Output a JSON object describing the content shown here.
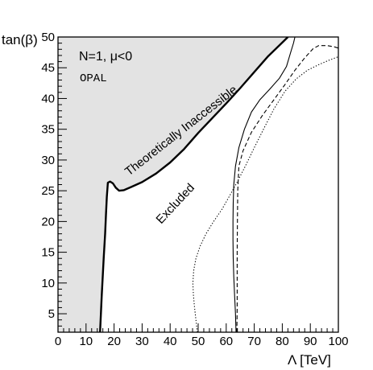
{
  "chart_data": {
    "type": "line",
    "xlabel": "Λ [TeV]",
    "ylabel": "tan(β)",
    "xlim": [
      0,
      100
    ],
    "ylim": [
      2,
      50
    ],
    "x_ticks": [
      0,
      10,
      20,
      30,
      40,
      50,
      60,
      70,
      80,
      90,
      100
    ],
    "y_ticks": [
      5,
      10,
      15,
      20,
      25,
      30,
      35,
      40,
      45,
      50
    ],
    "grid": false,
    "annotations": {
      "model": "N=1, μ<0",
      "experiment": "OPAL",
      "region_inaccessible": "Theoretically Inaccessible",
      "region_excluded": "Excluded"
    },
    "inaccessible_boundary": [
      [
        15,
        2
      ],
      [
        15.6,
        8
      ],
      [
        16.3,
        14
      ],
      [
        16.8,
        18
      ],
      [
        17.1,
        21
      ],
      [
        17.4,
        24
      ],
      [
        17.8,
        26.3
      ],
      [
        18.6,
        26.5
      ],
      [
        19.6,
        26.2
      ],
      [
        20.6,
        25.5
      ],
      [
        21.8,
        25.0
      ],
      [
        23.5,
        25.1
      ],
      [
        26,
        25.6
      ],
      [
        30,
        26.4
      ],
      [
        35,
        27.8
      ],
      [
        40,
        29.6
      ],
      [
        45,
        31.8
      ],
      [
        50,
        34.4
      ],
      [
        55,
        36.8
      ],
      [
        60,
        39.2
      ],
      [
        65,
        41.7
      ],
      [
        70,
        44.3
      ],
      [
        75,
        46.9
      ],
      [
        80,
        49.1
      ],
      [
        82,
        50
      ]
    ],
    "series": [
      {
        "style": "solid",
        "points": [
          [
            63.5,
            2
          ],
          [
            63.3,
            5
          ],
          [
            63,
            8
          ],
          [
            62.7,
            11
          ],
          [
            62.5,
            14
          ],
          [
            62.4,
            17
          ],
          [
            62.4,
            20
          ],
          [
            62.5,
            23
          ],
          [
            62.7,
            26
          ],
          [
            63.3,
            29
          ],
          [
            64.5,
            32
          ],
          [
            66.5,
            35
          ],
          [
            69,
            37.8
          ],
          [
            72,
            39.8
          ],
          [
            75.5,
            41.5
          ],
          [
            79,
            43.3
          ],
          [
            81.5,
            45.2
          ],
          [
            83,
            47.5
          ],
          [
            84,
            49
          ],
          [
            84.5,
            50
          ]
        ]
      },
      {
        "style": "dashed",
        "points": [
          [
            63.8,
            2
          ],
          [
            63.9,
            6
          ],
          [
            63.9,
            10
          ],
          [
            63.9,
            15
          ],
          [
            64,
            20
          ],
          [
            64.1,
            25
          ],
          [
            64.5,
            29
          ],
          [
            66,
            31.5
          ],
          [
            69,
            34.5
          ],
          [
            73,
            37.3
          ],
          [
            77,
            39.8
          ],
          [
            81,
            42.3
          ],
          [
            84.5,
            44.6
          ],
          [
            88,
            46.6
          ],
          [
            91,
            48.1
          ],
          [
            93,
            48.6
          ],
          [
            96,
            48.6
          ],
          [
            98.5,
            48.4
          ],
          [
            100,
            48.2
          ]
        ]
      },
      {
        "style": "dotted",
        "points": [
          [
            49.7,
            2
          ],
          [
            49.2,
            4
          ],
          [
            48.7,
            6
          ],
          [
            48.3,
            8
          ],
          [
            48.1,
            10
          ],
          [
            48.4,
            12
          ],
          [
            49.2,
            14
          ],
          [
            50.7,
            16
          ],
          [
            52.8,
            18
          ],
          [
            55.5,
            20
          ],
          [
            58.5,
            22
          ],
          [
            61.5,
            24.4
          ],
          [
            64,
            26.5
          ],
          [
            66.8,
            29
          ],
          [
            70,
            32
          ],
          [
            73.5,
            35.2
          ],
          [
            77,
            38.3
          ],
          [
            81,
            41.2
          ],
          [
            85,
            43.2
          ],
          [
            89,
            44.6
          ],
          [
            93,
            45.5
          ],
          [
            96.5,
            46.2
          ],
          [
            100,
            46.8
          ]
        ]
      }
    ]
  }
}
